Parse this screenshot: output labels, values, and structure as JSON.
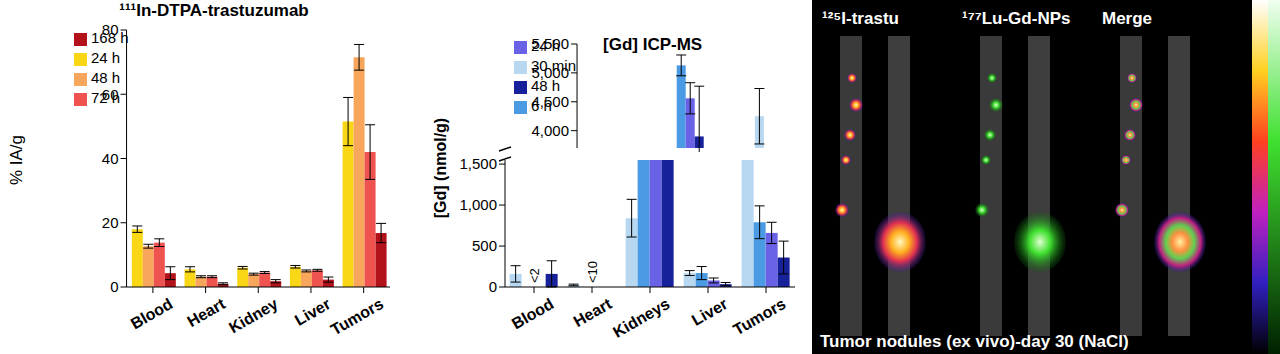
{
  "chart_data": [
    {
      "type": "bar",
      "title": "¹¹¹In-DTPA-trastuzumab",
      "y_label": "% IA/g",
      "categories": [
        "Blood",
        "Heart",
        "Kidney",
        "Liver",
        "Tumors"
      ],
      "ylim": [
        0,
        80
      ],
      "yticks": [
        0,
        20,
        40,
        60,
        80
      ],
      "legend": "upper left",
      "series": [
        {
          "name": "24 h",
          "color": "#f9d616",
          "values": [
            18,
            5.5,
            6,
            6.3,
            51.5
          ],
          "errors": [
            1,
            0.8,
            0.4,
            0.4,
            7.5
          ]
        },
        {
          "name": "48 h",
          "color": "#f8a65c",
          "values": [
            12.7,
            3.2,
            4,
            5,
            71.5
          ],
          "errors": [
            0.6,
            0.3,
            0.3,
            0.3,
            4
          ]
        },
        {
          "name": "72 h",
          "color": "#ef5350",
          "values": [
            13.8,
            3.2,
            4.5,
            5.2,
            42
          ],
          "errors": [
            1.2,
            0.3,
            0.3,
            0.3,
            8.5
          ]
        },
        {
          "name": "168 h",
          "color": "#b3121b",
          "values": [
            4.3,
            1,
            1.8,
            2.3,
            16.8
          ],
          "errors": [
            2,
            0.3,
            0.5,
            0.8,
            3
          ]
        }
      ]
    },
    {
      "type": "bar",
      "title": "[Gd] ICP-MS",
      "y_label": "[Gd] (nmol/g)",
      "categories": [
        "Blood",
        "Heart",
        "Kidneys",
        "Liver",
        "Tumors"
      ],
      "ylim": [
        [
          0,
          1550
        ],
        [
          3700,
          5500
        ]
      ],
      "yticks": [
        [
          0,
          500,
          {
            "value": 1000,
            "label": "1,000"
          },
          {
            "value": 1500,
            "label": "1,500"
          }
        ],
        [
          {
            "value": 4000,
            "label": "4,000"
          },
          {
            "value": 4500,
            "label": "4,500"
          },
          {
            "value": 5000,
            "label": "5,000"
          },
          {
            "value": 5500,
            "label": "5,500"
          }
        ]
      ],
      "legend": "upper left",
      "annotations": [
        {
          "category": "Blood",
          "text": "<2"
        },
        {
          "category": "Heart",
          "text": "<10"
        }
      ],
      "series": [
        {
          "name": "30 min",
          "color": "#b8d8f2",
          "values": [
            160,
            25,
            840,
            170,
            4250
          ],
          "errors": [
            100,
            10,
            230,
            30,
            480
          ]
        },
        {
          "name": "6 h",
          "color": "#4a9be3",
          "values": [
            null,
            null,
            5130,
            170,
            790
          ],
          "errors": [
            null,
            null,
            180,
            80,
            200
          ]
        },
        {
          "name": "24 h",
          "color": "#6a62e6",
          "values": [
            null,
            null,
            4560,
            80,
            660
          ],
          "errors": [
            null,
            null,
            270,
            30,
            130
          ]
        },
        {
          "name": "48 h",
          "color": "#17229a",
          "values": [
            160,
            null,
            3900,
            35,
            360
          ],
          "errors": [
            160,
            null,
            870,
            20,
            200
          ]
        }
      ]
    }
  ],
  "image_panel": {
    "labels": [
      "¹²⁵I-trastu",
      "¹⁷⁷Lu-Gd-NPs",
      "Merge"
    ],
    "caption": "Tumor nodules (ex vivo)-day 30 (NaCl)"
  }
}
